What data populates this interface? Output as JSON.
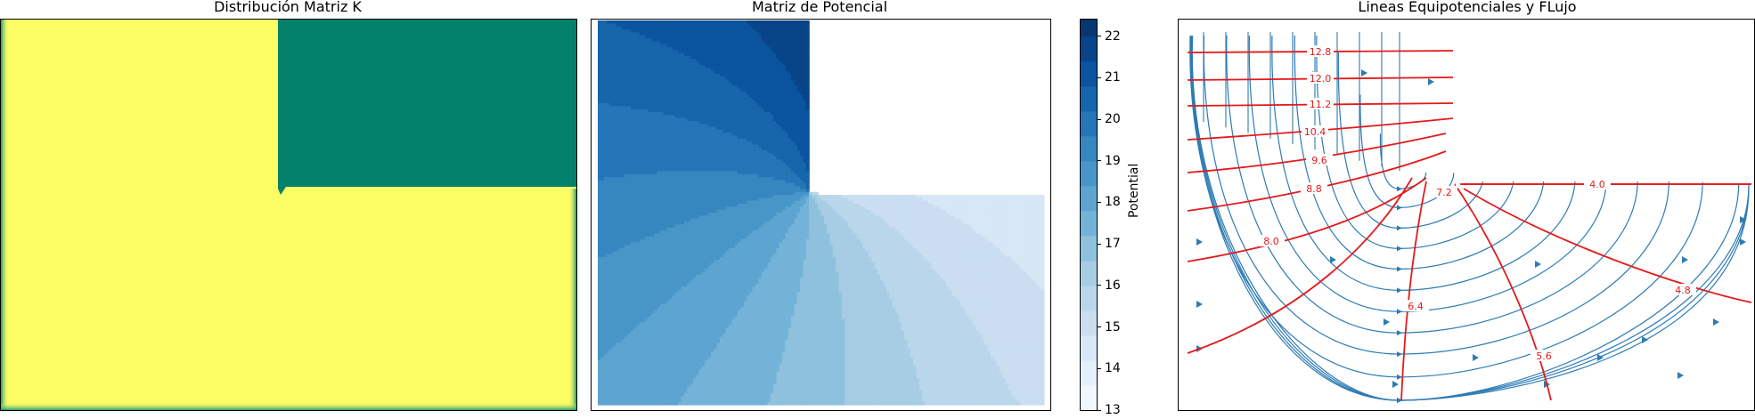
{
  "panels": {
    "k": {
      "title": "Distribución Matriz K"
    },
    "potential": {
      "title": "Matriz de Potencial"
    },
    "flow": {
      "title": "Lineas Equipotenciales y FLujo"
    }
  },
  "colorbar": {
    "label": "Potential",
    "ticks": [
      22,
      21,
      20,
      19,
      18,
      17,
      16,
      15,
      14,
      13
    ]
  },
  "chart_data": [
    {
      "type": "heatmap",
      "title": "Distribución Matriz K",
      "colormap": "viridis",
      "regions": [
        {
          "name": "upper-right block",
          "value": "low",
          "color": "#03816a"
        },
        {
          "name": "remaining domain",
          "value": "high",
          "color": "#fdfd66"
        }
      ]
    },
    {
      "type": "heatmap",
      "title": "Matriz de Potencial",
      "colormap": "Blues",
      "colorbar_label": "Potential",
      "vmin": 13,
      "vmax": 22.4,
      "levels": [
        13.0,
        13.6,
        14.2,
        14.8,
        15.4,
        16.0,
        16.6,
        17.2,
        17.8,
        18.4,
        19.0,
        19.6,
        20.2,
        20.8,
        21.4,
        22.0,
        22.4
      ]
    },
    {
      "type": "line",
      "title": "Lineas Equipotenciales y FLujo",
      "contour_labels": [
        "12.8",
        "12.0",
        "11.2",
        "10.4",
        "9.6",
        "8.8",
        "8.0",
        "7.2",
        "6.4",
        "5.6",
        "4.8",
        "4.0"
      ],
      "contour_color": "#e31a1c",
      "streamline_color": "#2d7bb4"
    }
  ]
}
